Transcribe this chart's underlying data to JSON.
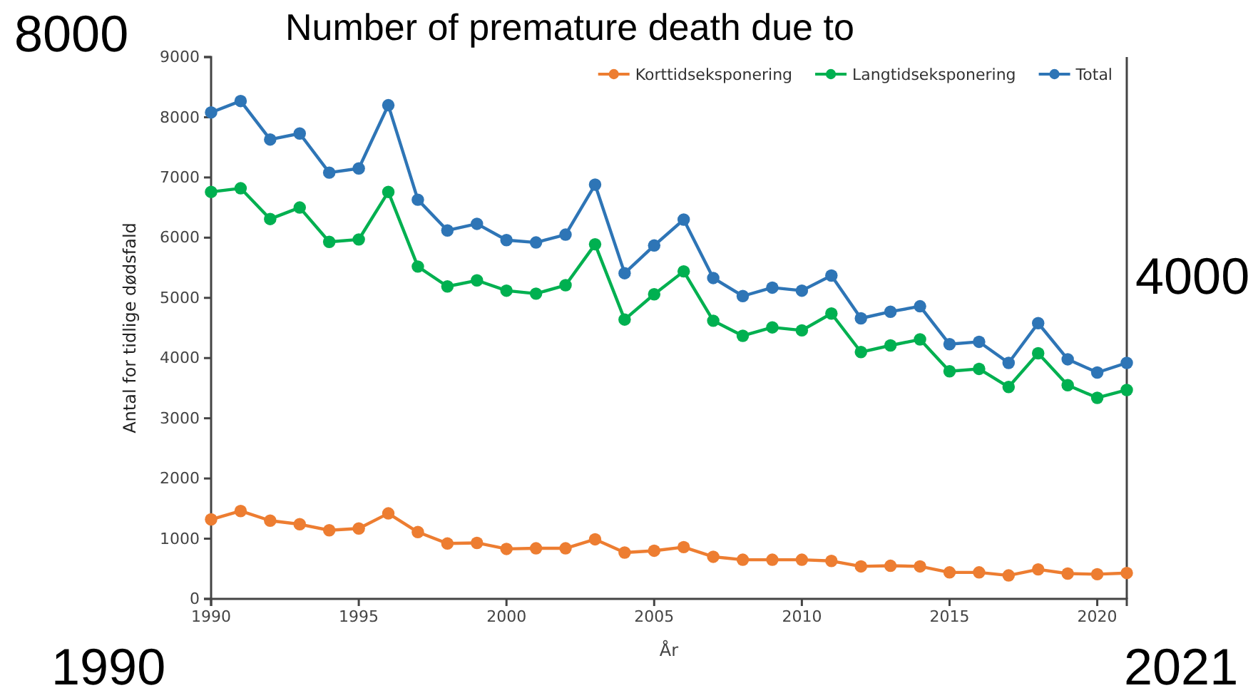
{
  "chart_data": {
    "type": "line",
    "title": "Number of premature death due to",
    "xlabel": "År",
    "ylabel": "Antal for tidlige dødsfald",
    "annotations": [
      "8000",
      "4000",
      "1990",
      "2021"
    ],
    "x": [
      1990,
      1991,
      1992,
      1993,
      1994,
      1995,
      1996,
      1997,
      1998,
      1999,
      2000,
      2001,
      2002,
      2003,
      2004,
      2005,
      2006,
      2007,
      2008,
      2009,
      2010,
      2011,
      2012,
      2013,
      2014,
      2015,
      2016,
      2017,
      2018,
      2019,
      2020,
      2021
    ],
    "series": [
      {
        "name": "Korttidseksponering",
        "color": "#ed7d31",
        "values": [
          1320,
          1460,
          1300,
          1240,
          1140,
          1170,
          1420,
          1110,
          920,
          930,
          830,
          840,
          840,
          990,
          770,
          800,
          860,
          700,
          650,
          650,
          650,
          630,
          540,
          550,
          540,
          440,
          440,
          390,
          490,
          420,
          410,
          430
        ]
      },
      {
        "name": "Langtidseksponering",
        "color": "#00b050",
        "values": [
          6760,
          6820,
          6310,
          6500,
          5930,
          5970,
          6760,
          5520,
          5190,
          5290,
          5120,
          5070,
          5210,
          5890,
          4640,
          5060,
          5440,
          4620,
          4370,
          4510,
          4460,
          4740,
          4100,
          4210,
          4310,
          3780,
          3820,
          3520,
          4080,
          3550,
          3340,
          3470
        ]
      },
      {
        "name": "Total",
        "color": "#2e75b6",
        "values": [
          8080,
          8270,
          7630,
          7730,
          7080,
          7150,
          8200,
          6630,
          6120,
          6230,
          5960,
          5920,
          6050,
          6880,
          5410,
          5870,
          6300,
          5330,
          5030,
          5170,
          5120,
          5370,
          4660,
          4770,
          4860,
          4230,
          4270,
          3920,
          4580,
          3980,
          3760,
          3920
        ]
      }
    ],
    "xlim": [
      1990,
      2021
    ],
    "xticks": [
      1990,
      1995,
      2000,
      2005,
      2010,
      2015,
      2020
    ],
    "ylim": [
      0,
      9000
    ],
    "yticks": [
      0,
      1000,
      2000,
      3000,
      4000,
      5000,
      6000,
      7000,
      8000,
      9000
    ],
    "grid": false,
    "legend": "top right",
    "marker": "circle",
    "line_style": "solid"
  }
}
